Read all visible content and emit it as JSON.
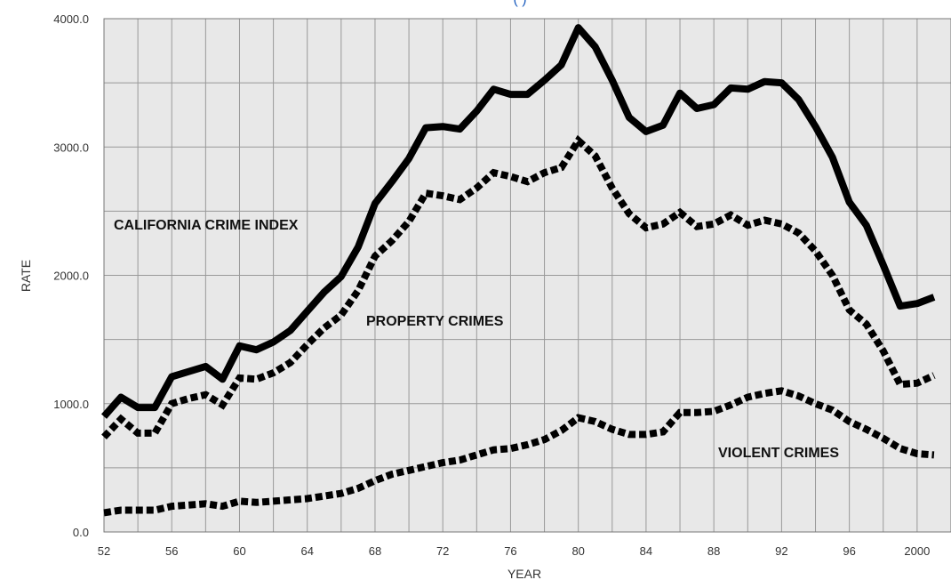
{
  "chart_data": {
    "type": "line",
    "title_fragment": "(                         )",
    "xlabel": "YEAR",
    "ylabel": "RATE",
    "xlim": [
      1952,
      2002
    ],
    "ylim": [
      0,
      4000
    ],
    "y_ticks": [
      "0.0",
      "1000.0",
      "2000.0",
      "3000.0",
      "4000.0"
    ],
    "x_tick_labels": [
      "52",
      "56",
      "60",
      "64",
      "68",
      "72",
      "76",
      "80",
      "84",
      "88",
      "92",
      "96",
      "2000"
    ],
    "grid": true,
    "plot_background": "#e8e8e8",
    "grid_color": "#999999",
    "line_color": "#000000",
    "x": [
      1952,
      1953,
      1954,
      1955,
      1956,
      1957,
      1958,
      1959,
      1960,
      1961,
      1962,
      1963,
      1964,
      1965,
      1966,
      1967,
      1968,
      1969,
      1970,
      1971,
      1972,
      1973,
      1974,
      1975,
      1976,
      1977,
      1978,
      1979,
      1980,
      1981,
      1982,
      1983,
      1984,
      1985,
      1986,
      1987,
      1988,
      1989,
      1990,
      1991,
      1992,
      1993,
      1994,
      1995,
      1996,
      1997,
      1998,
      1999,
      2000,
      2001
    ],
    "series": [
      {
        "name": "CALIFORNIA CRIME INDEX",
        "style": "solid",
        "values": [
          900,
          1050,
          970,
          970,
          1210,
          1250,
          1290,
          1190,
          1450,
          1420,
          1480,
          1570,
          1720,
          1870,
          1990,
          2220,
          2560,
          2730,
          2910,
          3150,
          3160,
          3140,
          3280,
          3450,
          3410,
          3410,
          3520,
          3640,
          3930,
          3780,
          3520,
          3230,
          3120,
          3170,
          3420,
          3300,
          3330,
          3460,
          3450,
          3510,
          3500,
          3370,
          3160,
          2920,
          2570,
          2390,
          2080,
          1760,
          1780,
          1830
        ]
      },
      {
        "name": "PROPERTY CRIMES",
        "style": "dashed",
        "values": [
          740,
          880,
          770,
          770,
          1000,
          1040,
          1070,
          990,
          1200,
          1190,
          1240,
          1320,
          1460,
          1590,
          1690,
          1880,
          2150,
          2270,
          2420,
          2640,
          2620,
          2590,
          2680,
          2800,
          2770,
          2730,
          2800,
          2840,
          3050,
          2930,
          2680,
          2480,
          2370,
          2400,
          2490,
          2380,
          2400,
          2470,
          2390,
          2430,
          2400,
          2330,
          2190,
          2000,
          1730,
          1620,
          1410,
          1150,
          1160,
          1220
        ]
      },
      {
        "name": "VIOLENT CRIMES",
        "style": "dashed",
        "values": [
          150,
          170,
          170,
          170,
          200,
          210,
          220,
          200,
          240,
          230,
          240,
          250,
          260,
          280,
          300,
          340,
          400,
          450,
          480,
          510,
          540,
          560,
          600,
          640,
          650,
          680,
          720,
          790,
          890,
          860,
          800,
          760,
          760,
          780,
          930,
          930,
          940,
          990,
          1050,
          1080,
          1100,
          1060,
          1000,
          950,
          860,
          800,
          730,
          650,
          610,
          600
        ]
      }
    ]
  }
}
